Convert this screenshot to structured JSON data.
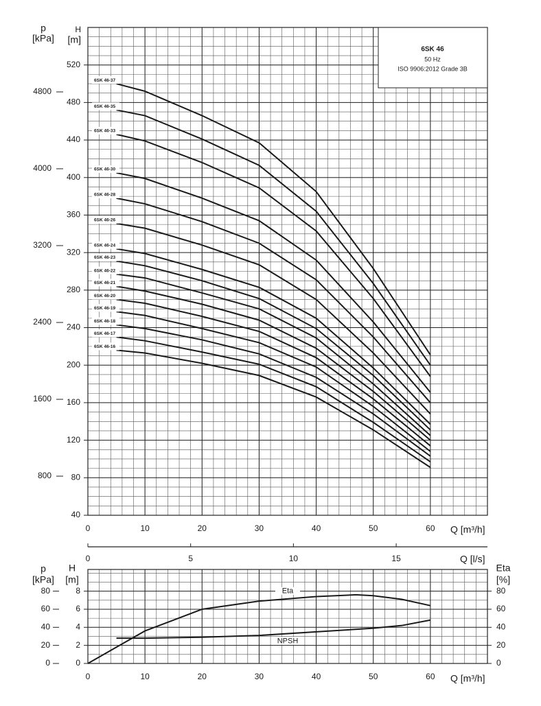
{
  "chart_data": [
    {
      "type": "line",
      "title": "6SK 46",
      "annotations": [
        "50 Hz",
        "ISO 9906:2012 Grade 3B"
      ],
      "x_label": "Q [m³/h]",
      "y_label": "H",
      "y_unit": "[m]",
      "y2_label": "p",
      "y2_unit": "[kPa]",
      "x": [
        5,
        10,
        20,
        30,
        40,
        50,
        60
      ],
      "xlim": [
        0,
        70
      ],
      "xticks": [
        0,
        10,
        20,
        30,
        40,
        50,
        60
      ],
      "ylim": [
        40,
        560
      ],
      "yticks": [
        40,
        80,
        120,
        160,
        200,
        240,
        280,
        320,
        360,
        400,
        440,
        480,
        520
      ],
      "y2lim": [
        393,
        5471
      ],
      "y2ticks": [
        800,
        1600,
        2400,
        3200,
        4000,
        4800
      ],
      "grid": true,
      "series": [
        {
          "name": "6SK 46-37",
          "color": "#1a1a1a",
          "values": [
            500,
            492,
            466,
            437,
            385,
            303,
            211
          ]
        },
        {
          "name": "6SK 46-35",
          "color": "#1a1a1a",
          "values": [
            472,
            466,
            441,
            413,
            364,
            287,
            200
          ]
        },
        {
          "name": "6SK 46-33",
          "color": "#1a1a1a",
          "values": [
            446,
            439,
            416,
            389,
            343,
            271,
            188
          ]
        },
        {
          "name": "6SK 46-30",
          "color": "#1a1a1a",
          "values": [
            405,
            399,
            378,
            354,
            312,
            246,
            171
          ]
        },
        {
          "name": "6SK 46-28",
          "color": "#1a1a1a",
          "values": [
            378,
            372,
            353,
            330,
            291,
            230,
            160
          ]
        },
        {
          "name": "6SK 46-26",
          "color": "#1a1a1a",
          "values": [
            351,
            346,
            328,
            307,
            270,
            213,
            148
          ]
        },
        {
          "name": "6SK 46-24",
          "color": "#1a1a1a",
          "values": [
            324,
            319,
            302,
            283,
            250,
            197,
            137
          ]
        },
        {
          "name": "6SK 46-23",
          "color": "#1a1a1a",
          "values": [
            311,
            306,
            290,
            271,
            239,
            189,
            131
          ]
        },
        {
          "name": "6SK 46-22",
          "color": "#1a1a1a",
          "values": [
            297,
            293,
            277,
            260,
            229,
            180,
            125
          ]
        },
        {
          "name": "6SK 46-21",
          "color": "#1a1a1a",
          "values": [
            284,
            279,
            265,
            248,
            218,
            172,
            120
          ]
        },
        {
          "name": "6SK 46-20",
          "color": "#1a1a1a",
          "values": [
            270,
            266,
            252,
            236,
            208,
            164,
            114
          ]
        },
        {
          "name": "6SK 46-19",
          "color": "#1a1a1a",
          "values": [
            257,
            253,
            239,
            224,
            198,
            156,
            108
          ]
        },
        {
          "name": "6SK 46-18",
          "color": "#1a1a1a",
          "values": [
            243,
            239,
            227,
            212,
            187,
            148,
            103
          ]
        },
        {
          "name": "6SK 46-17",
          "color": "#1a1a1a",
          "values": [
            230,
            226,
            214,
            201,
            177,
            139,
            97
          ]
        },
        {
          "name": "6SK 46-16",
          "color": "#1a1a1a",
          "values": [
            216,
            213,
            202,
            189,
            166,
            131,
            91
          ]
        }
      ]
    },
    {
      "type": "axis",
      "x_label": "Q [l/s]",
      "xlim": [
        0,
        19.44
      ],
      "xticks": [
        0,
        5,
        10,
        15
      ]
    },
    {
      "type": "line",
      "x_label": "Q [m³/h]",
      "y_label": "H",
      "y_unit": "[m]",
      "y2_label": "Eta",
      "y2_unit": "[%]",
      "y3_label": "p",
      "y3_unit": "[kPa]",
      "xlim": [
        0,
        70
      ],
      "xticks": [
        0,
        10,
        20,
        30,
        40,
        50,
        60
      ],
      "ylim": [
        0,
        10.4
      ],
      "yticks": [
        0,
        2,
        4,
        6,
        8
      ],
      "y2lim": [
        0,
        104
      ],
      "y2ticks": [
        0,
        20,
        40,
        60,
        80
      ],
      "y3lim": [
        0,
        104
      ],
      "y3ticks": [
        0,
        20,
        40,
        60,
        80
      ],
      "grid": true,
      "series": [
        {
          "name": "Eta",
          "color": "#1a1a1a",
          "axis": "y2",
          "x": [
            0,
            5,
            10,
            20,
            30,
            40,
            47,
            50,
            55,
            60
          ],
          "values": [
            0,
            18,
            36,
            60,
            69,
            74,
            76,
            75,
            71,
            64
          ]
        },
        {
          "name": "NPSH",
          "color": "#1a1a1a",
          "x": [
            5,
            10,
            20,
            30,
            40,
            50,
            55,
            60
          ],
          "values": [
            2.8,
            2.8,
            2.9,
            3.1,
            3.5,
            3.9,
            4.2,
            4.8
          ]
        }
      ]
    }
  ]
}
